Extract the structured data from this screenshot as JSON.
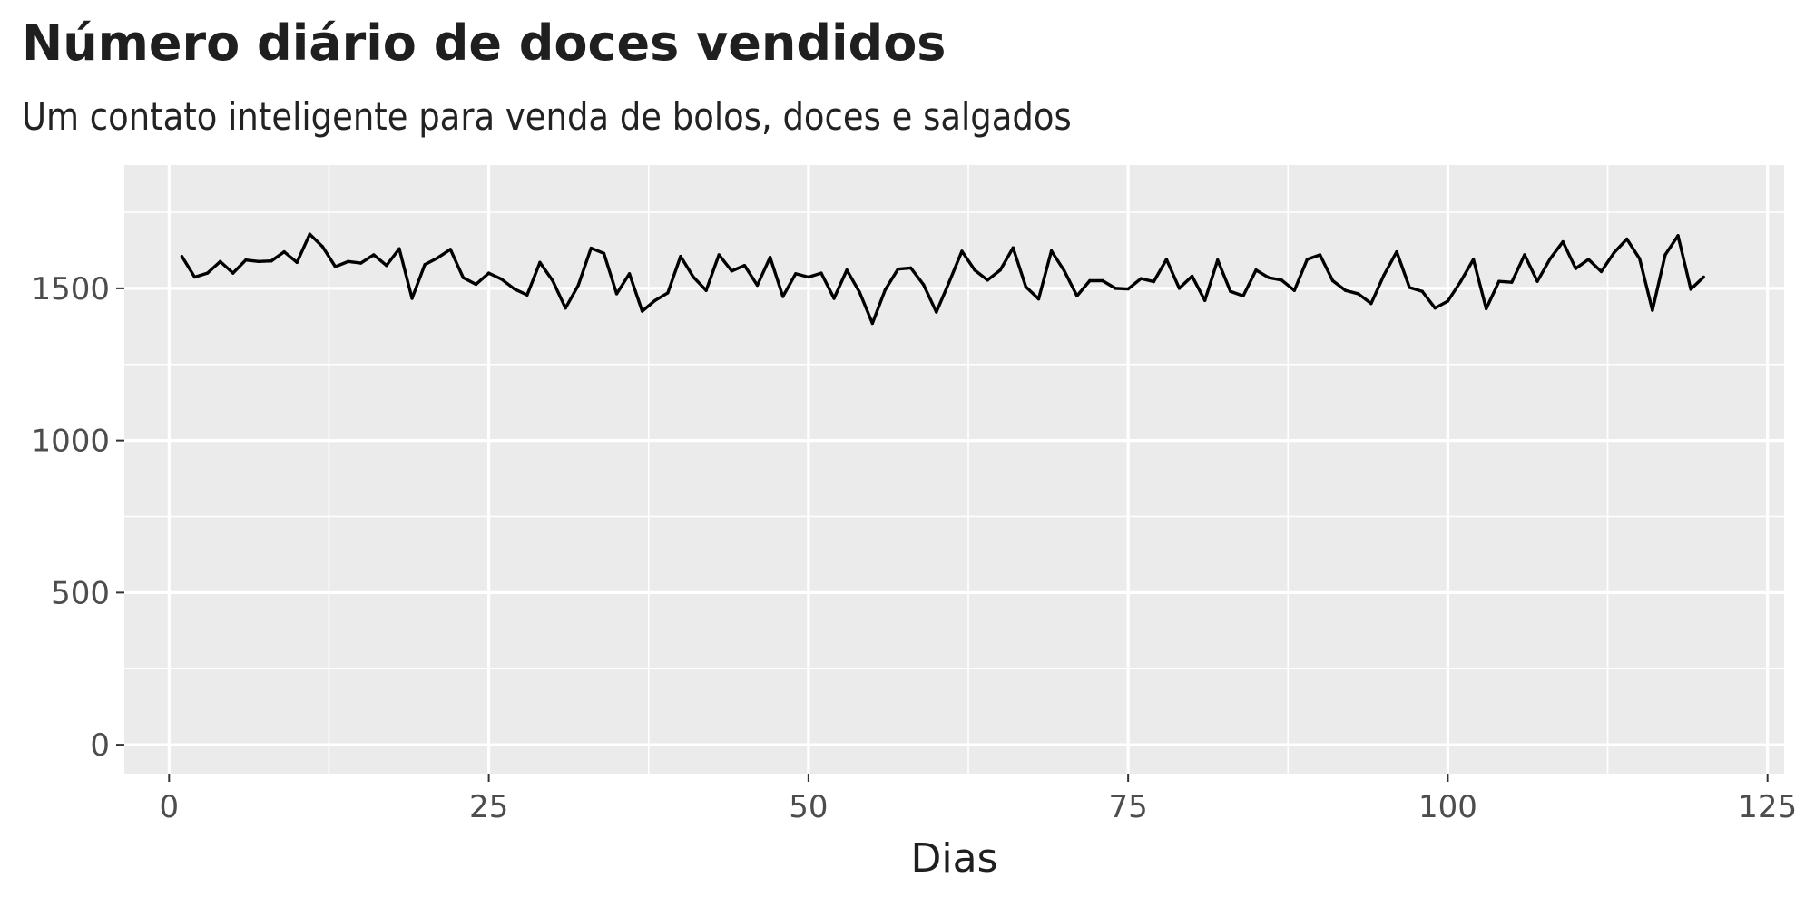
{
  "title": "Número diário de doces vendidos",
  "subtitle": "Um contato inteligente para venda de bolos, doces e salgados",
  "colors": {
    "panel_background": "#EBEBEB",
    "grid_line": "#FFFFFF",
    "series_line": "#000000",
    "tick_label": "#4D4D4D"
  },
  "chart_data": {
    "type": "line",
    "title": "Número diário de doces vendidos",
    "subtitle": "Um contato inteligente para venda de bolos, doces e salgados",
    "xlabel": "Dias",
    "ylabel": "",
    "xlim": [
      -3.5,
      126.3
    ],
    "ylim": [
      -95,
      1905
    ],
    "x_ticks": [
      0,
      25,
      50,
      75,
      100,
      125
    ],
    "x_tick_labels": [
      "0",
      "25",
      "50",
      "75",
      "100",
      "125"
    ],
    "y_ticks": [
      0,
      500,
      1000,
      1500
    ],
    "y_tick_labels": [
      "0",
      "500",
      "1000",
      "1500"
    ],
    "grid": true,
    "legend": "none",
    "series": [
      {
        "x": [
          1,
          2,
          3,
          4,
          5,
          6,
          7,
          8,
          9,
          10,
          11,
          12,
          13,
          14,
          15,
          16,
          17,
          18,
          19,
          20,
          21,
          22,
          23,
          24,
          25,
          26,
          27,
          28,
          29,
          30,
          31,
          32,
          33,
          34,
          35,
          36,
          37,
          38,
          39,
          40,
          41,
          42,
          43,
          44,
          45,
          46,
          47,
          48,
          49,
          50,
          51,
          52,
          53,
          54,
          55,
          56,
          57,
          58,
          59,
          60,
          61,
          62,
          63,
          64,
          65,
          66,
          67,
          68,
          69,
          70,
          71,
          72,
          73,
          74,
          75,
          76,
          77,
          78,
          79,
          80,
          81,
          82,
          83,
          84,
          85,
          86,
          87,
          88,
          89,
          90,
          91,
          92,
          93,
          94,
          95,
          96,
          97,
          98,
          99,
          100,
          101,
          102,
          103,
          104,
          105,
          106,
          107,
          108,
          109,
          110,
          111,
          112,
          113,
          114,
          115,
          116,
          117,
          118,
          119,
          120
        ],
        "values": [
          1605,
          1537,
          1550,
          1588,
          1550,
          1593,
          1588,
          1590,
          1620,
          1585,
          1678,
          1637,
          1571,
          1588,
          1583,
          1610,
          1575,
          1630,
          1467,
          1578,
          1600,
          1628,
          1535,
          1513,
          1550,
          1530,
          1498,
          1478,
          1585,
          1525,
          1435,
          1510,
          1632,
          1615,
          1482,
          1548,
          1425,
          1460,
          1485,
          1605,
          1537,
          1493,
          1610,
          1557,
          1575,
          1510,
          1602,
          1473,
          1548,
          1537,
          1550,
          1467,
          1560,
          1487,
          1385,
          1495,
          1563,
          1567,
          1512,
          1422,
          1520,
          1622,
          1560,
          1527,
          1560,
          1633,
          1505,
          1465,
          1623,
          1558,
          1475,
          1525,
          1525,
          1500,
          1498,
          1532,
          1522,
          1595,
          1500,
          1540,
          1460,
          1593,
          1490,
          1475,
          1560,
          1535,
          1527,
          1493,
          1595,
          1610,
          1525,
          1493,
          1482,
          1450,
          1543,
          1620,
          1503,
          1490,
          1435,
          1458,
          1522,
          1595,
          1433,
          1523,
          1520,
          1610,
          1523,
          1597,
          1653,
          1565,
          1595,
          1555,
          1617,
          1662,
          1597,
          1428,
          1610,
          1673,
          1497,
          1537
        ]
      }
    ]
  }
}
